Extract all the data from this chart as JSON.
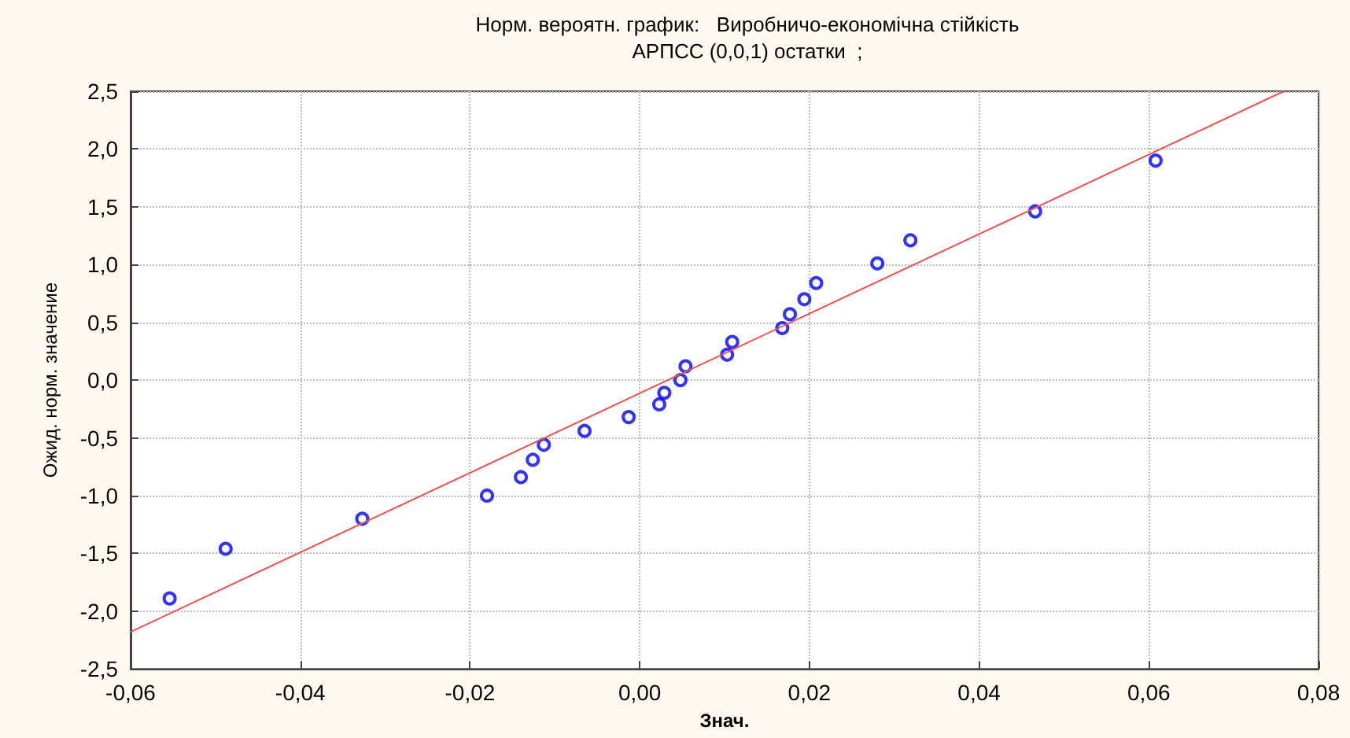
{
  "chart_data": {
    "type": "scatter",
    "title": "Норм. вероятн. график:   Виробничо-економічна стійкість",
    "subtitle": "АРПСС (0,0,1) остатки  ;",
    "xlabel": "Знач.",
    "ylabel": "Ожид. норм. значение",
    "series": [
      {
        "type": "scatter",
        "color": "#0000ff",
        "marker": "circle",
        "x": [
          -0.0554,
          -0.0488,
          -0.0327,
          -0.018,
          -0.014,
          -0.0126,
          -0.0113,
          -0.0065,
          -0.0013,
          0.0023,
          0.0029,
          0.0048,
          0.0054,
          0.0103,
          0.0109,
          0.0168,
          0.0177,
          0.0194,
          0.0208,
          0.028,
          0.0319,
          0.0466,
          0.0608
        ],
        "values": [
          -1.89,
          -1.46,
          -1.2,
          -1.0,
          -0.84,
          -0.69,
          -0.56,
          -0.44,
          -0.32,
          -0.21,
          -0.11,
          0.0,
          0.12,
          0.22,
          0.33,
          0.45,
          0.57,
          0.7,
          0.84,
          1.01,
          1.21,
          1.46,
          1.9
        ]
      },
      {
        "type": "line",
        "color": "#f05050",
        "marker": "none",
        "line_style": "solid",
        "x": [
          -0.06,
          0.0759
        ],
        "values": [
          -2.18,
          2.5
        ]
      }
    ],
    "xlim": [
      -0.06,
      0.08
    ],
    "xticks": [
      {
        "value": -0.06,
        "label": "-0,06"
      },
      {
        "value": -0.04,
        "label": "-0,04"
      },
      {
        "value": -0.02,
        "label": "-0,02"
      },
      {
        "value": 0,
        "label": "0,00"
      },
      {
        "value": 0.02,
        "label": "0,02"
      },
      {
        "value": 0.04,
        "label": "0,04"
      },
      {
        "value": 0.06,
        "label": "0,06"
      },
      {
        "value": 0.08,
        "label": "0,08"
      }
    ],
    "ylim": [
      -2.5,
      2.5
    ],
    "yticks": [
      {
        "value": -2.5,
        "label": "-2,5"
      },
      {
        "value": -2,
        "label": "-2,0"
      },
      {
        "value": -1.5,
        "label": "-1,5"
      },
      {
        "value": -1,
        "label": "-1,0"
      },
      {
        "value": -0.5,
        "label": "-0,5"
      },
      {
        "value": 0,
        "label": "0,0"
      },
      {
        "value": 0.5,
        "label": "0,5"
      },
      {
        "value": 1,
        "label": "1,0"
      },
      {
        "value": 1.5,
        "label": "1,5"
      },
      {
        "value": 2,
        "label": "2,0"
      },
      {
        "value": 2.5,
        "label": "2,5"
      }
    ],
    "grid": true
  }
}
